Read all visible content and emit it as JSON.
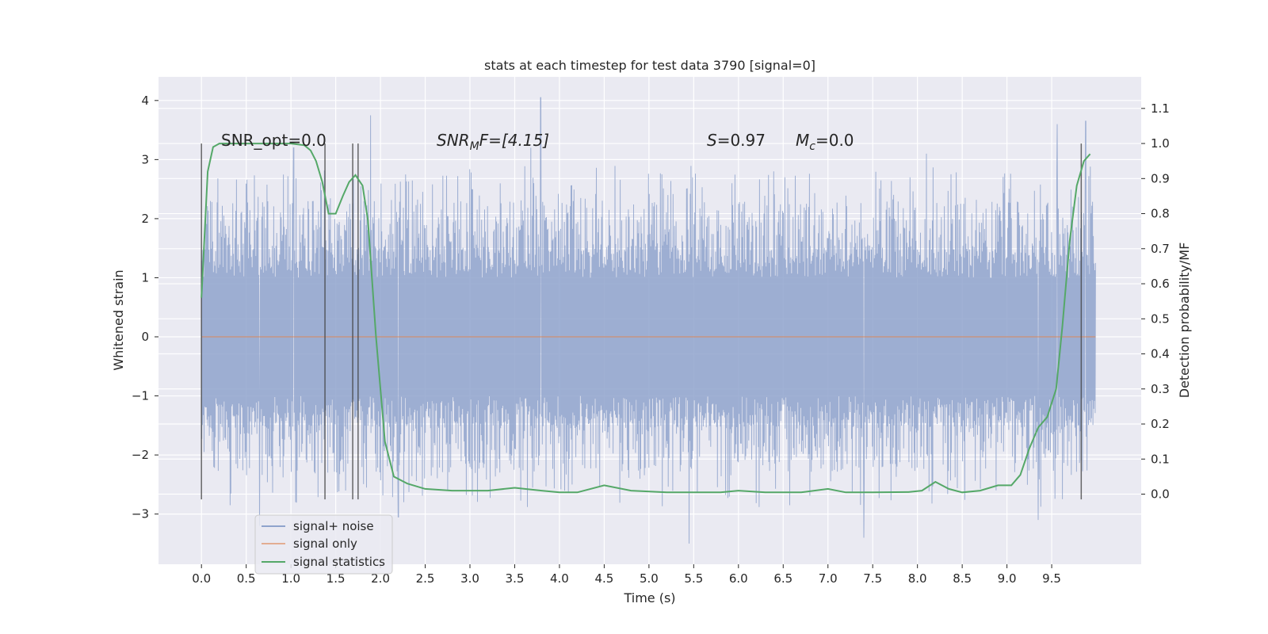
{
  "chart_data": {
    "type": "line",
    "title": "stats at each timestep for test data 3790 [signal=0]",
    "xlabel": "Time (s)",
    "ylabel": "Whitened strain",
    "ylabel_right": "Detection probability/MF",
    "xlim": [
      -0.48,
      10.5
    ],
    "ylim": [
      -3.85,
      4.4
    ],
    "ylim_right": [
      -0.2,
      1.19
    ],
    "x_ticks": [
      0.0,
      0.5,
      1.0,
      1.5,
      2.0,
      2.5,
      3.0,
      3.5,
      4.0,
      4.5,
      5.0,
      5.5,
      6.0,
      6.5,
      7.0,
      7.5,
      8.0,
      8.5,
      9.0,
      9.5
    ],
    "x_tick_labels": [
      "0.0",
      "0.5",
      "1.0",
      "1.5",
      "2.0",
      "2.5",
      "3.0",
      "3.5",
      "4.0",
      "4.5",
      "5.0",
      "5.5",
      "6.0",
      "6.5",
      "7.0",
      "7.5",
      "8.0",
      "8.5",
      "9.0",
      "9.5"
    ],
    "y_ticks": [
      -3,
      -2,
      -1,
      0,
      1,
      2,
      3,
      4
    ],
    "y_tick_labels": [
      "−3",
      "−2",
      "−1",
      "0",
      "1",
      "2",
      "3",
      "4"
    ],
    "y_right_ticks": [
      0.0,
      0.1,
      0.2,
      0.3,
      0.4,
      0.5,
      0.6,
      0.7,
      0.8,
      0.9,
      1.0,
      1.1
    ],
    "y_right_tick_labels": [
      "0.0",
      "0.1",
      "0.2",
      "0.3",
      "0.4",
      "0.5",
      "0.6",
      "0.7",
      "0.8",
      "0.9",
      "1.0",
      "1.1"
    ],
    "grid": true,
    "legend_position": "lower-left",
    "annotations": {
      "snr_opt": "SNR_opt=0.0",
      "snr_mf_base": "SNR",
      "snr_mf_sub": "M",
      "snr_mf_rest": "F=[4.15]",
      "s_label": "S",
      "s_value": "=0.97",
      "mc_base": "M",
      "mc_sub": "c",
      "mc_value": "=0.0"
    },
    "series": [
      {
        "name": "signal+ noise",
        "color": "#8fa3cc",
        "x_range": [
          0.0,
          9.99
        ],
        "envelope": {
          "typical_peak_high": [
            1.5,
            2.6
          ],
          "typical_peak_low": [
            -2.6,
            -1.5
          ],
          "extremes": [
            {
              "x": 1.03,
              "y": 3.2
            },
            {
              "x": 1.89,
              "y": 3.75
            },
            {
              "x": 3.79,
              "y": 4.05
            },
            {
              "x": 3.68,
              "y": 3.2
            },
            {
              "x": 5.45,
              "y": -3.5
            },
            {
              "x": 7.4,
              "y": -3.4
            },
            {
              "x": 9.56,
              "y": 3.6
            },
            {
              "x": 9.88,
              "y": 3.65
            },
            {
              "x": 0.65,
              "y": -3.2
            },
            {
              "x": 2.2,
              "y": -3.05
            },
            {
              "x": 9.35,
              "y": -3.1
            },
            {
              "x": 8.1,
              "y": 3.1
            }
          ]
        }
      },
      {
        "name": "signal only",
        "color": "#dd8452",
        "x": [
          0.0,
          9.99
        ],
        "y": [
          0.0,
          0.0
        ]
      },
      {
        "name": "signal statistics",
        "axis": "right",
        "color": "#55a868",
        "x": [
          0.0,
          0.07,
          0.13,
          0.2,
          0.3,
          0.5,
          0.8,
          1.0,
          1.15,
          1.22,
          1.28,
          1.35,
          1.42,
          1.5,
          1.58,
          1.65,
          1.72,
          1.8,
          1.86,
          1.95,
          2.05,
          2.15,
          2.3,
          2.5,
          2.8,
          3.2,
          3.5,
          3.8,
          4.0,
          4.2,
          4.5,
          4.8,
          5.2,
          5.6,
          5.8,
          6.0,
          6.3,
          6.7,
          7.0,
          7.2,
          7.5,
          7.9,
          8.05,
          8.2,
          8.35,
          8.5,
          8.7,
          8.9,
          9.05,
          9.15,
          9.25,
          9.35,
          9.45,
          9.55,
          9.62,
          9.7,
          9.78,
          9.86,
          9.93
        ],
        "y": [
          0.56,
          0.92,
          0.99,
          1.0,
          1.0,
          1.0,
          1.0,
          1.0,
          0.995,
          0.98,
          0.95,
          0.89,
          0.8,
          0.8,
          0.85,
          0.89,
          0.91,
          0.88,
          0.78,
          0.45,
          0.15,
          0.05,
          0.03,
          0.015,
          0.01,
          0.01,
          0.018,
          0.01,
          0.005,
          0.005,
          0.025,
          0.01,
          0.005,
          0.005,
          0.005,
          0.01,
          0.005,
          0.005,
          0.015,
          0.005,
          0.005,
          0.006,
          0.01,
          0.035,
          0.015,
          0.005,
          0.01,
          0.025,
          0.025,
          0.055,
          0.13,
          0.19,
          0.22,
          0.3,
          0.48,
          0.72,
          0.88,
          0.95,
          0.97
        ]
      }
    ],
    "vertical_markers": [
      0.0,
      1.38,
      1.69,
      1.75,
      9.83
    ]
  }
}
